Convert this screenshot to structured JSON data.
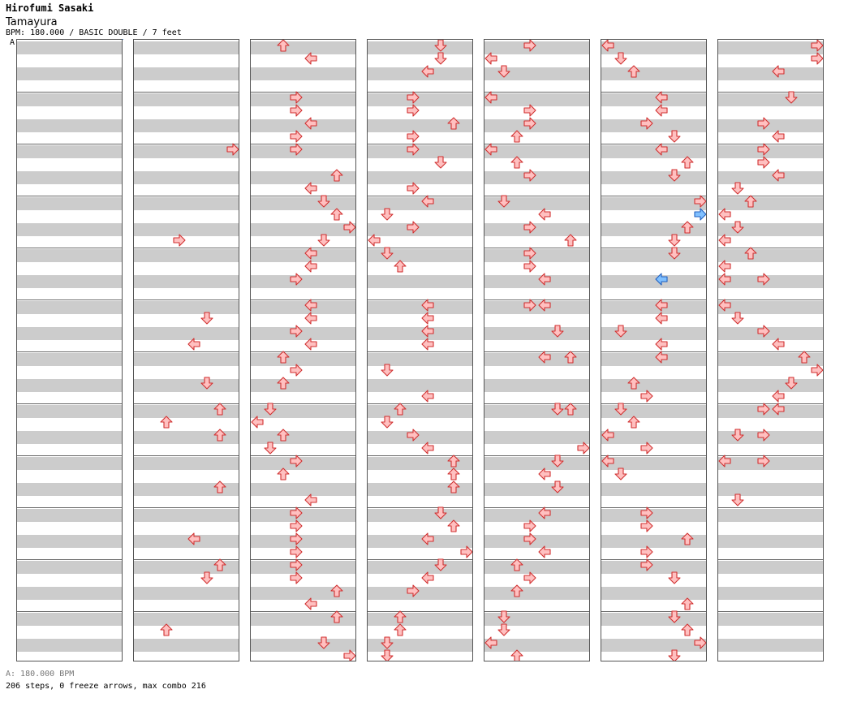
{
  "header": {
    "artist": "Hirofumi Sasaki",
    "title": "Tamayura",
    "info": "BPM: 180.000 / BASIC DOUBLE / 7 feet",
    "marker": "A"
  },
  "footer": {
    "bpm_line": "A: 180.000 BPM",
    "stats": "206 steps, 0 freeze arrows, max combo 216"
  },
  "colors": {
    "red_fill": "#ffc0c0",
    "red_stroke": "#d03030",
    "pink_fill": "#ffc8ff",
    "pink_stroke": "#c030c0",
    "blue_fill": "#80c0ff",
    "blue_stroke": "#2060c0",
    "stripe": "#cccccc"
  },
  "chart": {
    "columns": 7,
    "measures_per_column": 12,
    "panels": [
      "left-1",
      "down-1",
      "up-1",
      "right-1",
      "left-2",
      "down-2",
      "up-2",
      "right-2"
    ],
    "notes": [
      [
        [
          0,
          "left",
          "red"
        ]
      ],
      [
        [
          0,
          "left",
          "red"
        ]
      ],
      [
        [
          0,
          "left",
          "red"
        ],
        [
          1,
          "left",
          "red"
        ]
      ],
      [
        [
          0,
          "left",
          "red"
        ],
        [
          2,
          "left",
          "red"
        ]
      ],
      [
        [
          0,
          "left",
          "red"
        ]
      ],
      [
        [
          0,
          "left",
          "red"
        ]
      ],
      [
        [
          0,
          "left",
          "red"
        ]
      ]
    ]
  }
}
